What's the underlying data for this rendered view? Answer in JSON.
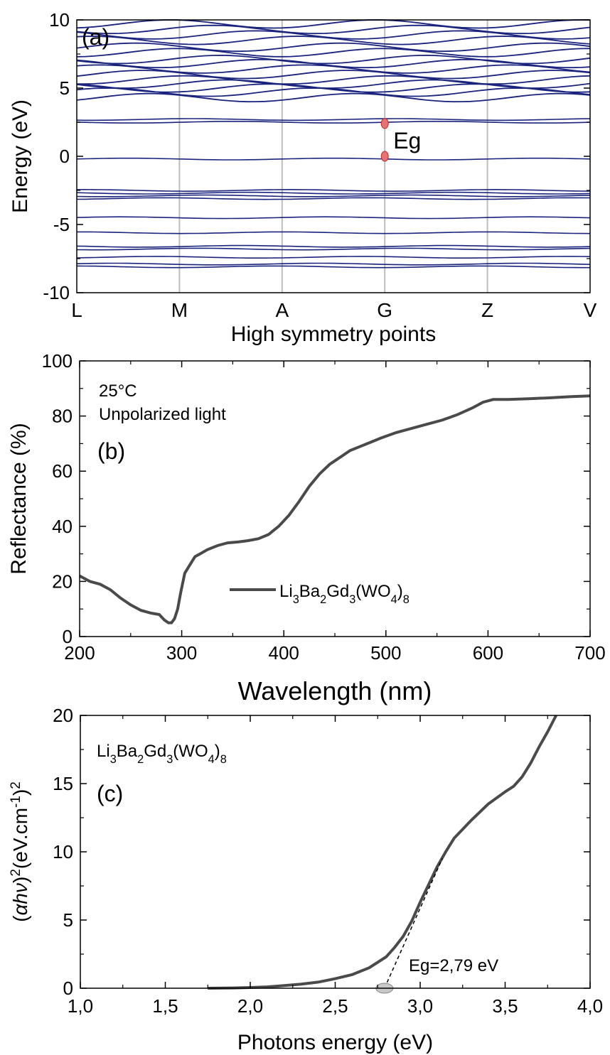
{
  "chart_data": [
    {
      "panel": "a",
      "type": "line",
      "panel_label": "(a)",
      "xlabel": "High symmetry points",
      "ylabel": "Energy (eV)",
      "ylim": [
        -10,
        10
      ],
      "yticks": [
        -10,
        -5,
        0,
        5,
        10
      ],
      "ytick_labels": [
        "-10",
        "-5",
        "0",
        "5",
        "10"
      ],
      "kpoints": [
        "L",
        "M",
        "A",
        "G",
        "Z",
        "V"
      ],
      "grid": "vertical lines at high-symmetry points",
      "band_color": "#1a237e",
      "valence_bands": [
        -0.2,
        -2.5,
        -2.7,
        -2.9,
        -3.1,
        -4.5,
        -5.6,
        -6.6,
        -6.8,
        -7.4,
        -7.9,
        -8.1
      ],
      "conduction_bands": [
        2.5,
        2.7,
        4.3,
        4.7,
        5.0,
        5.3,
        5.6,
        6.0,
        6.4,
        6.8,
        7.1,
        7.6,
        8.0,
        8.5,
        8.9,
        9.3,
        9.7
      ],
      "gap_points": [
        {
          "k": "G",
          "energy": 0
        },
        {
          "k": "G",
          "energy": 2.4
        }
      ],
      "annotation": "Eg",
      "marker_color": "#e57373"
    },
    {
      "panel": "b",
      "type": "line",
      "panel_label": "(b)",
      "xlabel": "Wavelength (nm)",
      "ylabel": "Reflectance (%)",
      "xlim": [
        200,
        700
      ],
      "ylim": [
        0,
        100
      ],
      "xticks": [
        200,
        300,
        400,
        500,
        600,
        700
      ],
      "yticks": [
        0,
        20,
        40,
        60,
        80,
        100
      ],
      "annotations": [
        "25°C",
        "Unpolarized light"
      ],
      "legend": {
        "placement": "center-bottom",
        "text": "Li3Ba2Gd3(WO4)8"
      },
      "series": [
        {
          "name": "Li3Ba2Gd3(WO4)8",
          "color": "#4a4a4a",
          "x": [
            200,
            210,
            220,
            230,
            240,
            250,
            260,
            270,
            278,
            283,
            287,
            290,
            293,
            296,
            299,
            303,
            308,
            313,
            318,
            325,
            335,
            345,
            355,
            365,
            375,
            385,
            395,
            405,
            415,
            425,
            435,
            445,
            455,
            465,
            475,
            485,
            495,
            510,
            525,
            540,
            555,
            570,
            585,
            595,
            605,
            620,
            640,
            660,
            680,
            700
          ],
          "y": [
            22,
            20,
            19,
            17,
            14,
            11.5,
            9.5,
            8.5,
            8,
            6,
            5,
            5,
            6.5,
            10,
            16,
            23,
            26,
            29,
            30,
            31.5,
            33,
            34,
            34.3,
            34.8,
            35.5,
            37,
            40,
            44,
            49,
            54.5,
            59,
            62.5,
            65,
            67.5,
            69,
            70.5,
            72,
            74,
            75.5,
            77,
            78.5,
            80.5,
            83,
            85,
            86,
            86,
            86.3,
            86.6,
            87,
            87.3
          ]
        }
      ]
    },
    {
      "panel": "c",
      "type": "line",
      "panel_label": "(c)",
      "compound_label": "Li3Ba2Gd3(WO4)8",
      "xlabel": "Photons energy (eV)",
      "ylabel": "(αhν)²(eV.cm⁻¹)²",
      "xlim": [
        1.0,
        4.0
      ],
      "ylim": [
        0,
        20
      ],
      "xticks": [
        1.0,
        1.5,
        2.0,
        2.5,
        3.0,
        3.5,
        4.0
      ],
      "xtick_labels": [
        "1,0",
        "1,5",
        "2,0",
        "2,5",
        "3,0",
        "3,5",
        "4,0"
      ],
      "yticks": [
        0,
        5,
        10,
        15,
        20
      ],
      "annotation": "Eg=2,79 eV",
      "band_gap_ev": 2.79,
      "series": [
        {
          "name": "Li3Ba2Gd3(WO4)8",
          "color": "#4a4a4a",
          "x": [
            1.75,
            1.9,
            2.0,
            2.1,
            2.2,
            2.3,
            2.4,
            2.5,
            2.6,
            2.7,
            2.8,
            2.85,
            2.9,
            2.95,
            3.0,
            3.05,
            3.1,
            3.15,
            3.2,
            3.3,
            3.4,
            3.5,
            3.55,
            3.6,
            3.65,
            3.7,
            3.75,
            3.8
          ],
          "y": [
            0,
            0.02,
            0.05,
            0.1,
            0.2,
            0.3,
            0.45,
            0.7,
            1.0,
            1.5,
            2.3,
            3.0,
            3.8,
            4.9,
            6.3,
            7.6,
            8.9,
            10.0,
            11.0,
            12.3,
            13.5,
            14.4,
            14.8,
            15.5,
            16.5,
            17.7,
            18.8,
            20
          ]
        },
        {
          "name": "tangent-fit",
          "style": "dashed",
          "x": [
            2.79,
            3.13
          ],
          "y": [
            0,
            9.5
          ]
        }
      ]
    }
  ]
}
